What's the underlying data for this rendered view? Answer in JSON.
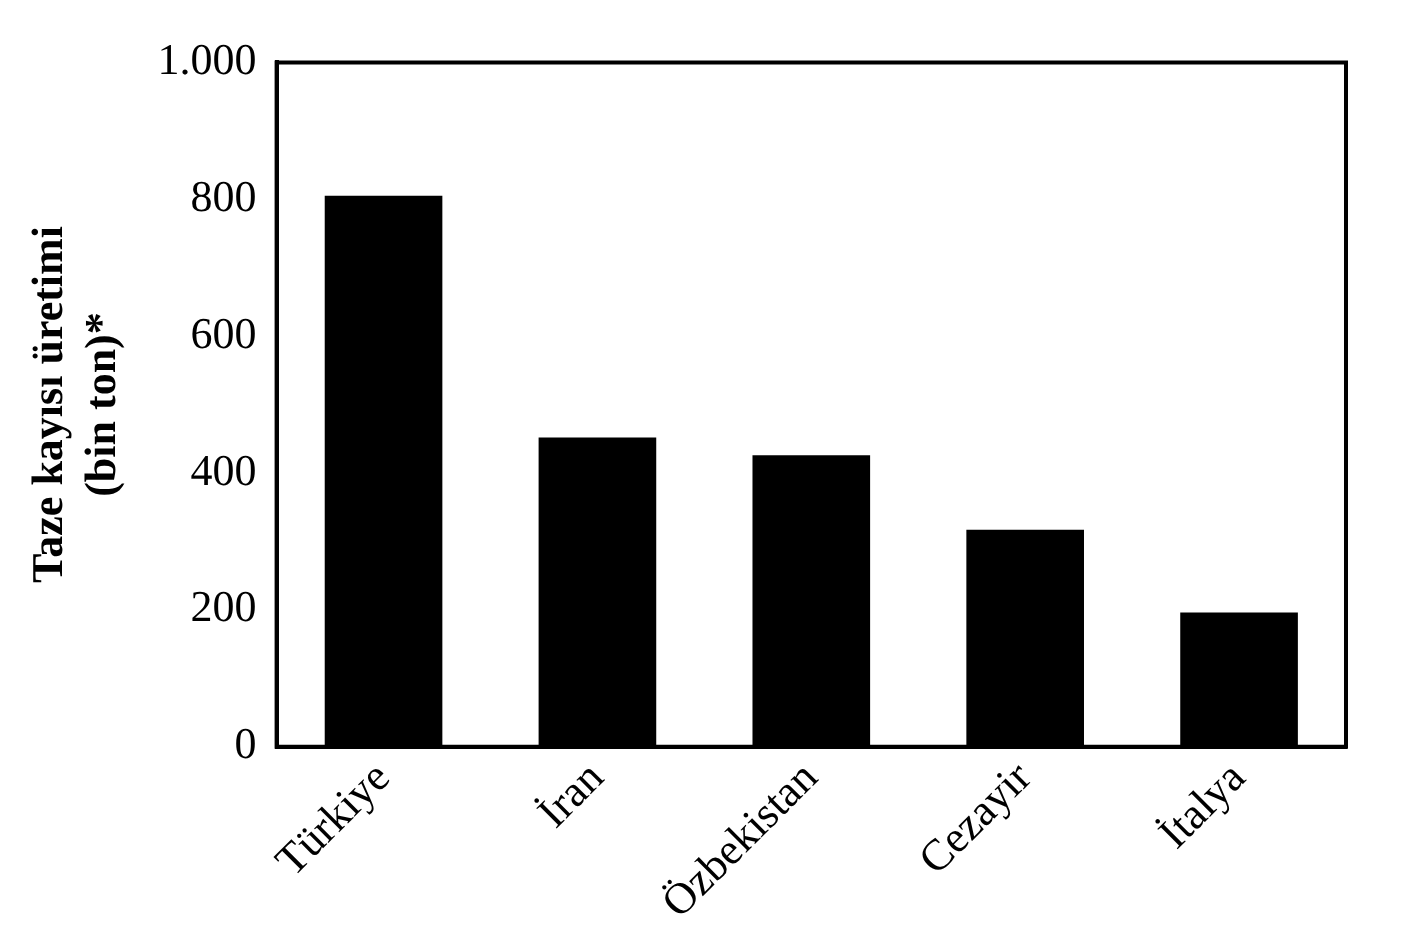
{
  "chart_data": {
    "type": "bar",
    "ylabel": "Taze kayısı üretimi\n(bin ton)*",
    "categories": [
      "Türkiye",
      "İran",
      "Özbekistan",
      "Cezayir",
      "İtalya"
    ],
    "values": [
      805,
      452,
      426,
      317,
      196
    ],
    "color": "#000000",
    "ylim": [
      0,
      1000
    ],
    "yticks": [
      0,
      200,
      400,
      600,
      800,
      {
        "value": 1000,
        "label": "1.000"
      }
    ],
    "grid": false
  }
}
